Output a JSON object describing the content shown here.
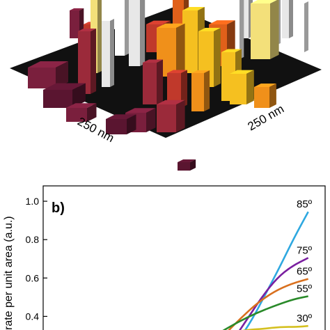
{
  "panel_a": {
    "label_left": "250 nm",
    "label_right": "250 nm",
    "palette": [
      "#5a1530",
      "#7a1f3d",
      "#9b2a3a",
      "#c0392b",
      "#e0601a",
      "#f0901a",
      "#f5c020",
      "#f3e07a",
      "#e8e8e8",
      "#ffffff"
    ]
  },
  "chart_data": {
    "type": "line",
    "panel_label": "b)",
    "ylabel": "rate per unit area (a.u.)",
    "xlabel": "",
    "ylim": [
      0.3,
      1.08
    ],
    "yticks": [
      0.4,
      0.6,
      0.8,
      1.0
    ],
    "ytick_labels": [
      "0.4",
      "0.6",
      "0.8",
      "1.0"
    ],
    "x_range": [
      0,
      1
    ],
    "series": [
      {
        "name": "85º",
        "color": "#2ea8e0",
        "x": [
          0.69,
          0.74,
          0.79,
          0.84,
          0.89,
          0.94
        ],
        "y": [
          0.27,
          0.38,
          0.52,
          0.66,
          0.81,
          0.945
        ]
      },
      {
        "name": "75º",
        "color": "#7a1fa0",
        "x": [
          0.68,
          0.73,
          0.78,
          0.83,
          0.88,
          0.94
        ],
        "y": [
          0.29,
          0.4,
          0.51,
          0.6,
          0.66,
          0.705
        ]
      },
      {
        "name": "65º",
        "color": "#d9701e",
        "x": [
          0.64,
          0.7,
          0.76,
          0.82,
          0.88,
          0.94
        ],
        "y": [
          0.3,
          0.39,
          0.47,
          0.53,
          0.57,
          0.595
        ]
      },
      {
        "name": "55º",
        "color": "#2a8a2a",
        "x": [
          0.62,
          0.69,
          0.76,
          0.83,
          0.89,
          0.94
        ],
        "y": [
          0.31,
          0.37,
          0.42,
          0.46,
          0.49,
          0.505
        ]
      },
      {
        "name": "30º",
        "color": "#d4c020",
        "x": [
          0.66,
          0.72,
          0.78,
          0.84,
          0.9,
          0.94
        ],
        "y": [
          0.31,
          0.33,
          0.335,
          0.345,
          0.345,
          0.35
        ]
      }
    ],
    "legend_placement": "right, inline at line ends",
    "grid": false
  }
}
